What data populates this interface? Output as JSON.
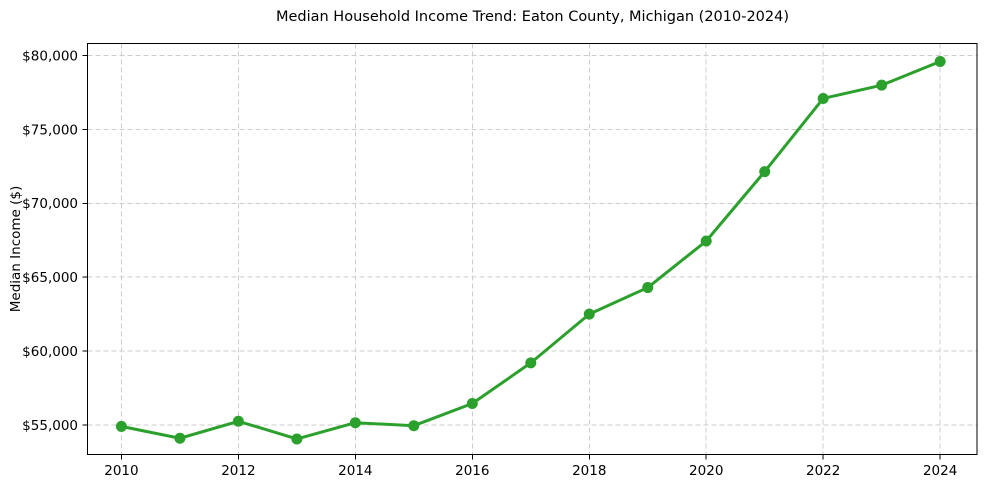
{
  "chart_data": {
    "type": "line",
    "title": "Median Household Income Trend: Eaton County, Michigan (2010-2024)",
    "xlabel": "",
    "ylabel": "Median Income ($)",
    "x": [
      2010,
      2011,
      2012,
      2013,
      2014,
      2015,
      2016,
      2017,
      2018,
      2019,
      2020,
      2021,
      2022,
      2023,
      2024
    ],
    "series": [
      {
        "name": "Median Household Income",
        "values": [
          54900,
          54100,
          55250,
          54050,
          55150,
          54950,
          56450,
          59200,
          62500,
          64300,
          67450,
          72150,
          77100,
          78000,
          79600
        ],
        "color": "#2ca02c",
        "marker": "circle",
        "marker_radius": 5.5,
        "line_width": 3
      }
    ],
    "x_ticks": [
      2010,
      2012,
      2014,
      2016,
      2018,
      2020,
      2022,
      2024
    ],
    "x_tick_labels": [
      "2010",
      "2012",
      "2014",
      "2016",
      "2018",
      "2020",
      "2022",
      "2024"
    ],
    "y_ticks": [
      55000,
      60000,
      65000,
      70000,
      75000,
      80000
    ],
    "y_tick_labels": [
      "$55,000",
      "$60,000",
      "$65,000",
      "$70,000",
      "$75,000",
      "$80,000"
    ],
    "xlim": [
      2009.42,
      2024.63
    ],
    "ylim": [
      53000,
      80820
    ],
    "grid": true,
    "grid_style": "dashed",
    "grid_color": "#cccccc",
    "spine_color": "#000000",
    "background": "#ffffff",
    "legend_position": "none"
  }
}
